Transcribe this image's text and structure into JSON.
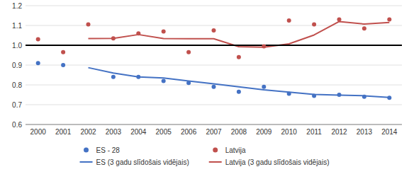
{
  "chart_data": {
    "type": "scatter",
    "x": [
      2000,
      2001,
      2002,
      2003,
      2004,
      2005,
      2006,
      2007,
      2008,
      2009,
      2010,
      2011,
      2012,
      2013,
      2014
    ],
    "series": [
      {
        "name": "ES - 28",
        "type": "scatter",
        "color": "#4472C4",
        "values": [
          0.91,
          0.9,
          null,
          0.84,
          0.84,
          0.82,
          0.81,
          0.79,
          0.765,
          0.79,
          0.755,
          0.745,
          0.75,
          0.74,
          0.735
        ]
      },
      {
        "name": "Latvija",
        "type": "scatter",
        "color": "#C0504D",
        "values": [
          1.03,
          0.965,
          1.105,
          1.035,
          1.06,
          1.07,
          0.965,
          1.075,
          0.94,
          0.995,
          1.125,
          1.105,
          1.13,
          1.085,
          1.13
        ]
      },
      {
        "name": "ES (3 gadu slīdošais vidējais)",
        "type": "line",
        "color": "#4472C4",
        "x": [
          2002,
          2003,
          2004,
          2005,
          2006,
          2007,
          2008,
          2009,
          2010,
          2011,
          2012,
          2013,
          2014
        ],
        "values": [
          0.887,
          0.86,
          0.84,
          0.835,
          0.82,
          0.805,
          0.79,
          0.775,
          0.763,
          0.752,
          0.748,
          0.745,
          0.737
        ]
      },
      {
        "name": "Latvija (3 gadu slīdošais vidējais)",
        "type": "line",
        "color": "#C0504D",
        "x": [
          2002,
          2003,
          2004,
          2005,
          2006,
          2007,
          2008,
          2009,
          2010,
          2011,
          2012,
          2013,
          2014
        ],
        "values": [
          1.034,
          1.035,
          1.054,
          1.034,
          1.033,
          1.033,
          0.993,
          0.99,
          1.007,
          1.052,
          1.12,
          1.107,
          1.115
        ]
      }
    ],
    "hline": {
      "value": 1.0,
      "color": "#000000"
    },
    "xlim": [
      1999.5,
      2014.5
    ],
    "xticks": [
      2000,
      2001,
      2002,
      2003,
      2004,
      2005,
      2006,
      2007,
      2008,
      2009,
      2010,
      2011,
      2012,
      2013,
      2014
    ],
    "ylim": [
      0.6,
      1.2
    ],
    "yticks": [
      0.6,
      0.7,
      0.8,
      0.9,
      {
        "value": 1.0,
        "label": "1.0"
      },
      1.1,
      1.2
    ],
    "grid": true,
    "legend": "bottom"
  }
}
